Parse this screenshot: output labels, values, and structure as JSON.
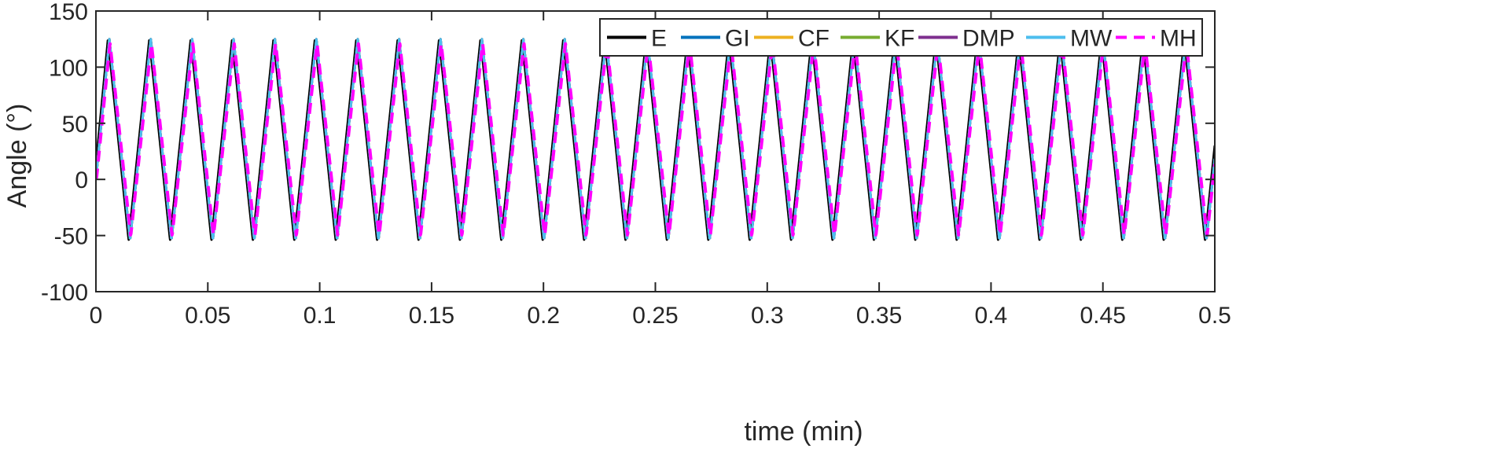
{
  "chart_data": {
    "type": "line",
    "xlabel": "time (min)",
    "ylabel": "Angle (°)",
    "xlim": [
      0,
      0.5
    ],
    "ylim": [
      -100,
      150
    ],
    "xticks": [
      0,
      0.05,
      0.1,
      0.15,
      0.2,
      0.25,
      0.3,
      0.35,
      0.4,
      0.45,
      0.5
    ],
    "xtick_labels": [
      "0",
      "0.05",
      "0.1",
      "0.15",
      "0.2",
      "0.25",
      "0.3",
      "0.35",
      "0.4",
      "0.45",
      "0.5"
    ],
    "yticks": [
      -100,
      -50,
      0,
      50,
      100,
      150
    ],
    "ytick_labels": [
      "-100",
      "-50",
      "0",
      "50",
      "100",
      "150"
    ],
    "grid": false,
    "legend": {
      "placement": "top-right",
      "orientation": "horizontal"
    },
    "signal": {
      "form": "triangle wave",
      "period": 0.0185,
      "min": -54,
      "max": 125,
      "start_value": 0,
      "first_peak_time": 0.006
    },
    "series": [
      {
        "name": "E",
        "color": "#000000",
        "style": "solid",
        "amplitude_scale": 1.0,
        "time_shift": -0.0006
      },
      {
        "name": "GI",
        "color": "#0072BD",
        "style": "solid",
        "amplitude_scale": 1.0,
        "time_shift": 0.0
      },
      {
        "name": "CF",
        "color": "#EDB120",
        "style": "solid",
        "amplitude_scale": 1.0,
        "time_shift": 0.0
      },
      {
        "name": "KF",
        "color": "#77AC30",
        "style": "solid",
        "amplitude_scale": 1.0,
        "time_shift": 0.0
      },
      {
        "name": "DMP",
        "color": "#7E2F8E",
        "style": "solid",
        "amplitude_scale": 1.0,
        "time_shift": 0.0
      },
      {
        "name": "MW",
        "color": "#4DBEEE",
        "style": "solid",
        "amplitude_scale": 1.0,
        "time_shift": 0.0
      },
      {
        "name": "MH",
        "color": "#FF00FF",
        "style": "dashed",
        "amplitude_scale": 0.96,
        "time_shift": 0.0003
      }
    ]
  }
}
